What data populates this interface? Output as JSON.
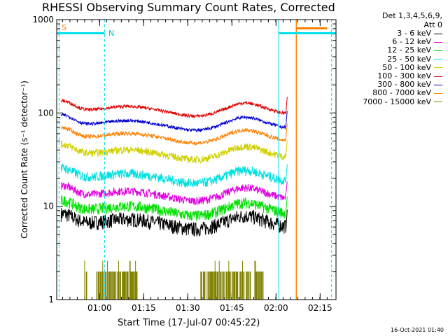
{
  "chart_data": {
    "type": "line",
    "title": "RHESSI Observing Summary Count Rates, Corrected",
    "xlabel": "Start Time (17-Jul-07 00:45:22)",
    "ylabel": "Corrected Count Rate (s⁻¹ detector⁻¹)",
    "yscale": "log",
    "ylim": [
      1,
      1000
    ],
    "xlim_minutes_after_start": [
      0,
      95
    ],
    "y_ticks": [
      "1",
      "10",
      "100",
      "1000"
    ],
    "x_ticks": [
      {
        "label": "01:00",
        "minute": 14.6
      },
      {
        "label": "01:15",
        "minute": 29.6
      },
      {
        "label": "01:30",
        "minute": 44.6
      },
      {
        "label": "01:45",
        "minute": 59.6
      },
      {
        "label": "02:00",
        "minute": 74.6
      },
      {
        "label": "02:15",
        "minute": 89.6
      }
    ],
    "legend_header": [
      "Det 1,3,4,5,6,9,",
      "Att 0"
    ],
    "series": [
      {
        "name": "3 - 6 keV",
        "color": "#000000",
        "base": 6.5
      },
      {
        "name": "6 - 12 keV",
        "color": "#e000e0",
        "base": 13
      },
      {
        "name": "12 - 25 keV",
        "color": "#00e000",
        "base": 9
      },
      {
        "name": "25 - 50 keV",
        "color": "#00e0e0",
        "base": 20
      },
      {
        "name": "50 - 100 keV",
        "color": "#d0d000",
        "base": 36
      },
      {
        "name": "100 - 300 keV",
        "color": "#e00000",
        "base": 105
      },
      {
        "name": "300 - 800 keV",
        "color": "#0000d0",
        "base": 74
      },
      {
        "name": "800 - 7000 keV",
        "color": "#ff8000",
        "base": 54
      },
      {
        "name": "7000 - 15000 keV",
        "color": "#808000",
        "base": 1.6
      }
    ],
    "annotations": {
      "saa_label": "S",
      "night_label": "N",
      "timestamp": "16-Oct-2021 01:40"
    }
  }
}
